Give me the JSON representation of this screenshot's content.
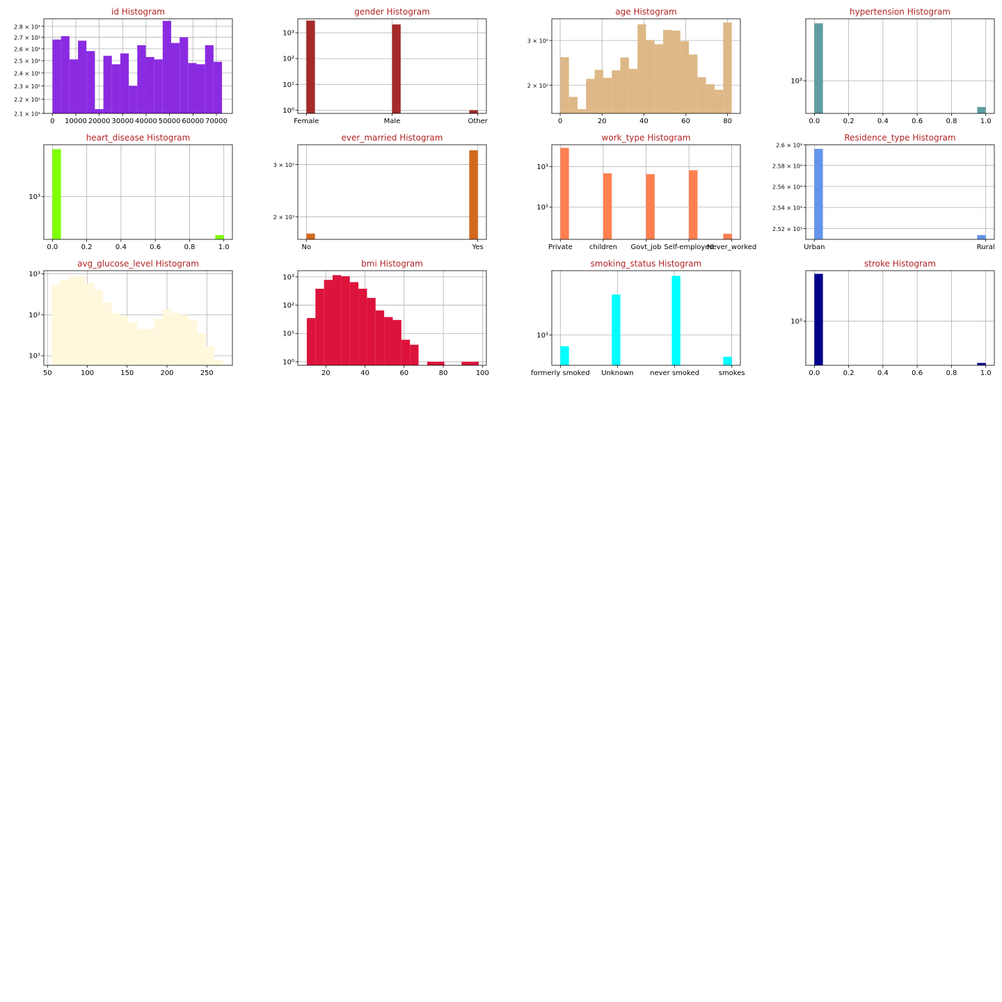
{
  "style": {
    "title_color": "#b22222"
  },
  "chart_data": [
    {
      "id": "id",
      "title": "id Histogram",
      "type": "bar",
      "kind": "numeric",
      "color": "#8a2be2",
      "yscale": "log",
      "xlim": [
        -3650,
        76850
      ],
      "ylim": [
        210,
        287
      ],
      "xticks": [
        0,
        10000,
        20000,
        30000,
        40000,
        50000,
        60000,
        70000
      ],
      "xtick_labels": [
        "0",
        "10000",
        "20000",
        "30000",
        "40000",
        "50000",
        "60000",
        "70000"
      ],
      "yticks": [
        210,
        220,
        230,
        240,
        250,
        260,
        270,
        280
      ],
      "ytick_labels": [
        "2.1 × 10²",
        "2.2 × 10²",
        "2.3 × 10²",
        "2.4 × 10²",
        "2.5 × 10²",
        "2.6 × 10²",
        "2.7 × 10²",
        "2.8 × 10²"
      ],
      "bins": [
        [
          67,
          3684,
          268
        ],
        [
          3684,
          7301,
          271
        ],
        [
          7301,
          10918,
          251
        ],
        [
          10918,
          14535,
          267
        ],
        [
          14535,
          18152,
          258
        ],
        [
          18152,
          21769,
          213
        ],
        [
          21769,
          25386,
          254
        ],
        [
          25386,
          29003,
          247
        ],
        [
          29003,
          32620,
          256
        ],
        [
          32620,
          36237,
          230
        ],
        [
          36237,
          39854,
          263
        ],
        [
          39854,
          43471,
          253
        ],
        [
          43471,
          47088,
          251
        ],
        [
          47088,
          50705,
          285
        ],
        [
          50705,
          54322,
          265
        ],
        [
          54322,
          57939,
          270
        ],
        [
          57939,
          61556,
          248
        ],
        [
          61556,
          65173,
          247
        ],
        [
          65173,
          68790,
          263
        ],
        [
          68790,
          72407,
          249
        ]
      ]
    },
    {
      "id": "gender",
      "title": "gender Histogram",
      "type": "bar",
      "kind": "categorical",
      "color": "#a52a2a",
      "yscale": "log",
      "xlim": [
        -0.1,
        2.1
      ],
      "ylim": [
        0.75,
        3500
      ],
      "xticks": [
        0,
        1,
        2
      ],
      "xtick_labels": [
        "Female",
        "Male",
        "Other"
      ],
      "yticks": [
        1,
        10,
        100,
        1000
      ],
      "ytick_labels": [
        "10⁰",
        "10¹",
        "10²",
        "10³"
      ],
      "bins": [
        [
          0,
          0.1,
          2994
        ],
        [
          1,
          1.1,
          2115
        ],
        [
          1.9,
          2,
          1
        ]
      ]
    },
    {
      "id": "age",
      "title": "age Histogram",
      "type": "bar",
      "kind": "numeric",
      "color": "#deb887",
      "yscale": "log",
      "xlim": [
        -4.0,
        86.1
      ],
      "ylim": [
        155,
        365
      ],
      "xticks": [
        0,
        20,
        40,
        60,
        80
      ],
      "xtick_labels": [
        "0",
        "20",
        "40",
        "60",
        "80"
      ],
      "yticks": [
        200,
        300
      ],
      "ytick_labels": [
        "2 × 10²",
        "3 × 10²"
      ],
      "bins": [
        [
          0.08,
          4.18,
          258
        ],
        [
          4.18,
          8.27,
          180
        ],
        [
          8.27,
          12.37,
          161
        ],
        [
          12.37,
          16.46,
          212
        ],
        [
          16.46,
          20.56,
          230
        ],
        [
          20.56,
          24.65,
          214
        ],
        [
          24.65,
          28.75,
          229
        ],
        [
          28.75,
          32.84,
          257
        ],
        [
          32.84,
          36.94,
          232
        ],
        [
          36.94,
          41.03,
          347
        ],
        [
          41.03,
          45.13,
          301
        ],
        [
          45.13,
          49.22,
          290
        ],
        [
          49.22,
          53.32,
          330
        ],
        [
          53.32,
          57.41,
          328
        ],
        [
          57.41,
          61.51,
          298
        ],
        [
          61.51,
          65.6,
          264
        ],
        [
          65.6,
          69.7,
          215
        ],
        [
          69.7,
          73.79,
          202
        ],
        [
          73.79,
          77.89,
          192
        ],
        [
          77.89,
          81.98,
          353
        ]
      ]
    },
    {
      "id": "hypertension",
      "title": "hypertension Histogram",
      "type": "bar",
      "kind": "numeric",
      "color": "#5f9ea0",
      "yscale": "log",
      "xlim": [
        -0.05,
        1.05
      ],
      "ylim": [
        420,
        5200
      ],
      "xticks": [
        0,
        0.2,
        0.4,
        0.6,
        0.8,
        1.0
      ],
      "xtick_labels": [
        "0.0",
        "0.2",
        "0.4",
        "0.6",
        "0.8",
        "1.0"
      ],
      "yticks": [
        1000
      ],
      "ytick_labels": [
        "10³"
      ],
      "bins": [
        [
          0,
          0.05,
          4612
        ],
        [
          0.95,
          1.0,
          498
        ]
      ]
    },
    {
      "id": "heart_disease",
      "title": "heart_disease Histogram",
      "type": "bar",
      "kind": "numeric",
      "color": "#7fff00",
      "yscale": "log",
      "xlim": [
        -0.05,
        1.05
      ],
      "ylim": [
        240,
        5600
      ],
      "xticks": [
        0,
        0.2,
        0.4,
        0.6,
        0.8,
        1.0
      ],
      "xtick_labels": [
        "0.0",
        "0.2",
        "0.4",
        "0.6",
        "0.8",
        "1.0"
      ],
      "yticks": [
        1000
      ],
      "ytick_labels": [
        "10³"
      ],
      "bins": [
        [
          0,
          0.05,
          4834
        ],
        [
          0.95,
          1.0,
          276
        ]
      ]
    },
    {
      "id": "ever_married",
      "title": "ever_married Histogram",
      "type": "bar",
      "kind": "categorical",
      "color": "#d2691e",
      "yscale": "log",
      "xlim": [
        -0.05,
        1.05
      ],
      "ylim": [
        1680,
        3500
      ],
      "xticks": [
        0,
        1
      ],
      "xtick_labels": [
        "No",
        "Yes"
      ],
      "yticks": [
        2000,
        3000
      ],
      "ytick_labels": [
        "2 × 10³",
        "3 × 10³"
      ],
      "bins": [
        [
          0,
          0.05,
          1757
        ],
        [
          0.95,
          1.0,
          3353
        ]
      ]
    },
    {
      "id": "work_type",
      "title": "work_type Histogram",
      "type": "bar",
      "kind": "categorical",
      "color": "#ff7f50",
      "yscale": "log",
      "xlim": [
        -0.2,
        4.2
      ],
      "ylim": [
        16,
        3500
      ],
      "xticks": [
        0,
        1,
        2,
        3,
        4
      ],
      "xtick_labels": [
        "Private",
        "children",
        "Govt_job",
        "Self-employed",
        "Never_worked"
      ],
      "yticks": [
        100,
        1000
      ],
      "ytick_labels": [
        "10²",
        "10³"
      ],
      "bins": [
        [
          0,
          0.2,
          2925
        ],
        [
          1,
          1.2,
          687
        ],
        [
          2,
          2.2,
          657
        ],
        [
          3,
          3.2,
          819
        ],
        [
          3.8,
          4.0,
          22
        ]
      ]
    },
    {
      "id": "Residence_type",
      "title": "Residence_type Histogram",
      "type": "bar",
      "kind": "categorical",
      "color": "#6495ed",
      "yscale": "log",
      "xlim": [
        -0.05,
        1.05
      ],
      "ylim": [
        2510,
        2600
      ],
      "xticks": [
        0,
        1
      ],
      "xtick_labels": [
        "Urban",
        "Rural"
      ],
      "yticks": [
        2520,
        2540,
        2560,
        2580,
        2600
      ],
      "ytick_labels": [
        "2.52 × 10³",
        "2.54 × 10³",
        "2.56 × 10³",
        "2.58 × 10³",
        "2.6 × 10³"
      ],
      "bins": [
        [
          0,
          0.05,
          2596
        ],
        [
          0.95,
          1.0,
          2514
        ]
      ]
    },
    {
      "id": "avg_glucose_level",
      "title": "avg_glucose_level Histogram",
      "type": "bar",
      "kind": "numeric",
      "color": "#fff8dc",
      "yscale": "log",
      "xlim": [
        45.4,
        282.1
      ],
      "ylim": [
        5.8,
        1200
      ],
      "xticks": [
        50,
        100,
        150,
        200,
        250
      ],
      "xtick_labels": [
        "50",
        "100",
        "150",
        "200",
        "250"
      ],
      "yticks": [
        10,
        100,
        1000
      ],
      "ytick_labels": [
        "10¹",
        "10²",
        "10³"
      ],
      "bins": [
        [
          55.12,
          65.88,
          540
        ],
        [
          65.88,
          76.63,
          700
        ],
        [
          76.63,
          87.39,
          890
        ],
        [
          87.39,
          98.15,
          870
        ],
        [
          98.15,
          108.91,
          600
        ],
        [
          108.91,
          119.66,
          400
        ],
        [
          119.66,
          130.42,
          200
        ],
        [
          130.42,
          141.18,
          110
        ],
        [
          141.18,
          151.93,
          95
        ],
        [
          151.93,
          162.69,
          65
        ],
        [
          162.69,
          173.45,
          45
        ],
        [
          173.45,
          184.21,
          45
        ],
        [
          184.21,
          194.96,
          80
        ],
        [
          194.96,
          205.72,
          135
        ],
        [
          205.72,
          216.48,
          110
        ],
        [
          216.48,
          227.23,
          100
        ],
        [
          227.23,
          237.99,
          75
        ],
        [
          237.99,
          248.75,
          35
        ],
        [
          248.75,
          259.5,
          17
        ],
        [
          259.5,
          270.26,
          8
        ]
      ]
    },
    {
      "id": "bmi",
      "title": "bmi Histogram",
      "type": "bar",
      "kind": "numeric",
      "color": "#dc143c",
      "yscale": "log",
      "xlim": [
        5.7,
        102.0
      ],
      "ylim": [
        0.75,
        1650
      ],
      "xticks": [
        20,
        40,
        60,
        80,
        100
      ],
      "xtick_labels": [
        "20",
        "40",
        "60",
        "80",
        "100"
      ],
      "yticks": [
        1,
        10,
        100,
        1000
      ],
      "ytick_labels": [
        "10⁰",
        "10¹",
        "10²",
        "10³"
      ],
      "bins": [
        [
          10.3,
          14.69,
          35
        ],
        [
          14.69,
          19.08,
          380
        ],
        [
          19.08,
          23.47,
          780
        ],
        [
          23.47,
          27.86,
          1150
        ],
        [
          27.86,
          32.25,
          1050
        ],
        [
          32.25,
          36.64,
          650
        ],
        [
          36.64,
          41.03,
          380
        ],
        [
          41.03,
          45.42,
          180
        ],
        [
          45.42,
          49.81,
          65
        ],
        [
          49.81,
          54.2,
          38
        ],
        [
          54.2,
          58.59,
          30
        ],
        [
          58.59,
          62.98,
          6
        ],
        [
          62.98,
          67.37,
          4
        ],
        [
          67.37,
          71.76,
          0
        ],
        [
          71.76,
          76.15,
          1
        ],
        [
          76.15,
          80.54,
          1
        ],
        [
          80.54,
          84.93,
          0
        ],
        [
          84.93,
          89.32,
          0
        ],
        [
          89.32,
          93.71,
          1
        ],
        [
          93.71,
          98.1,
          1
        ]
      ]
    },
    {
      "id": "smoking_status",
      "title": "smoking_status Histogram",
      "type": "bar",
      "kind": "categorical",
      "color": "#00ffff",
      "yscale": "log",
      "xlim": [
        -0.15,
        3.15
      ],
      "ylim": [
        720,
        2000
      ],
      "xticks": [
        0,
        1,
        2,
        3
      ],
      "xtick_labels": [
        "formerly smoked",
        "Unknown",
        "never smoked",
        "smokes"
      ],
      "yticks": [
        1000
      ],
      "ytick_labels": [
        "10³"
      ],
      "bins": [
        [
          0,
          0.15,
          885
        ],
        [
          0.9,
          1.05,
          1544
        ],
        [
          1.95,
          2.1,
          1892
        ],
        [
          2.85,
          3.0,
          789
        ]
      ]
    },
    {
      "id": "stroke",
      "title": "stroke Histogram",
      "type": "bar",
      "kind": "numeric",
      "color": "#00008b",
      "yscale": "log",
      "xlim": [
        -0.05,
        1.05
      ],
      "ylim": [
        230,
        5400
      ],
      "xticks": [
        0,
        0.2,
        0.4,
        0.6,
        0.8,
        1.0
      ],
      "xtick_labels": [
        "0.0",
        "0.2",
        "0.4",
        "0.6",
        "0.8",
        "1.0"
      ],
      "yticks": [
        1000
      ],
      "ytick_labels": [
        "10³"
      ],
      "bins": [
        [
          0,
          0.05,
          4861
        ],
        [
          0.95,
          1.0,
          249
        ]
      ]
    }
  ]
}
